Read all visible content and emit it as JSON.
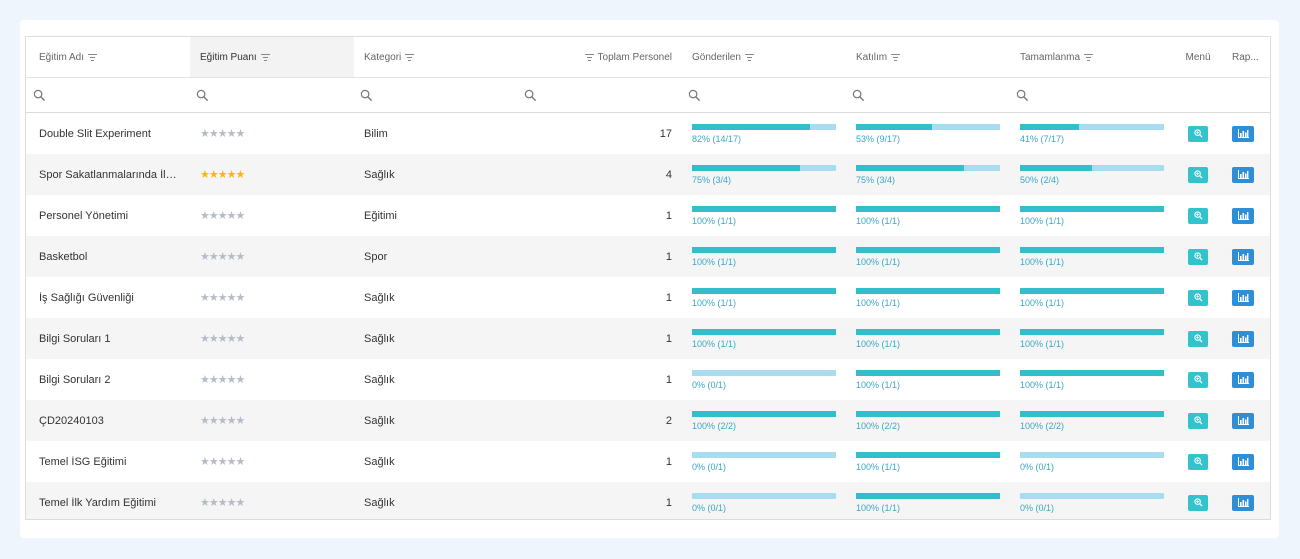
{
  "colors": {
    "accent_fill": "#32bfcb",
    "bar_bg": "#aadcf0",
    "menu_button": "#33c3cc",
    "report_button": "#2f8fd6",
    "star_gold": "#f5b90b",
    "star_grey": "#b5bcc7"
  },
  "icons": {
    "filter": "filter-icon",
    "search": "search-icon",
    "menu_action": "zoom-in-icon",
    "report_action": "bar-chart-icon"
  },
  "columns": {
    "name": "Eğitim Adı",
    "rating": "Eğitim Puanı",
    "category": "Kategori",
    "total": "Toplam Personel",
    "sent": "Gönderilen",
    "attendance": "Katılım",
    "completion": "Tamamlanma",
    "menu": "Menü",
    "report": "Rap..."
  },
  "rows": [
    {
      "name": "Double Slit Experiment",
      "rating": 0,
      "category": "Bilim",
      "total": "17",
      "sent": {
        "pct": 82,
        "label": "82% (14/17)"
      },
      "attendance": {
        "pct": 53,
        "label": "53% (9/17)"
      },
      "completion": {
        "pct": 41,
        "label": "41% (7/17)"
      }
    },
    {
      "name": "Spor Sakatlanmalarında İlk Y...",
      "rating": 5,
      "category": "Sağlık",
      "total": "4",
      "sent": {
        "pct": 75,
        "label": "75% (3/4)"
      },
      "attendance": {
        "pct": 75,
        "label": "75% (3/4)"
      },
      "completion": {
        "pct": 50,
        "label": "50% (2/4)"
      }
    },
    {
      "name": "Personel Yönetimi",
      "rating": 0,
      "category": "Eğitimi",
      "total": "1",
      "sent": {
        "pct": 100,
        "label": "100% (1/1)"
      },
      "attendance": {
        "pct": 100,
        "label": "100% (1/1)"
      },
      "completion": {
        "pct": 100,
        "label": "100% (1/1)"
      }
    },
    {
      "name": "Basketbol",
      "rating": 0,
      "category": "Spor",
      "total": "1",
      "sent": {
        "pct": 100,
        "label": "100% (1/1)"
      },
      "attendance": {
        "pct": 100,
        "label": "100% (1/1)"
      },
      "completion": {
        "pct": 100,
        "label": "100% (1/1)"
      }
    },
    {
      "name": "İş Sağlığı Güvenliği",
      "rating": 0,
      "category": "Sağlık",
      "total": "1",
      "sent": {
        "pct": 100,
        "label": "100% (1/1)"
      },
      "attendance": {
        "pct": 100,
        "label": "100% (1/1)"
      },
      "completion": {
        "pct": 100,
        "label": "100% (1/1)"
      }
    },
    {
      "name": "Bilgi Soruları 1",
      "rating": 0,
      "category": "Sağlık",
      "total": "1",
      "sent": {
        "pct": 100,
        "label": "100% (1/1)"
      },
      "attendance": {
        "pct": 100,
        "label": "100% (1/1)"
      },
      "completion": {
        "pct": 100,
        "label": "100% (1/1)"
      }
    },
    {
      "name": "Bilgi Soruları 2",
      "rating": 0,
      "category": "Sağlık",
      "total": "1",
      "sent": {
        "pct": 0,
        "label": "0% (0/1)"
      },
      "attendance": {
        "pct": 100,
        "label": "100% (1/1)"
      },
      "completion": {
        "pct": 100,
        "label": "100% (1/1)"
      }
    },
    {
      "name": "ÇD20240103",
      "rating": 0,
      "category": "Sağlık",
      "total": "2",
      "sent": {
        "pct": 100,
        "label": "100% (2/2)"
      },
      "attendance": {
        "pct": 100,
        "label": "100% (2/2)"
      },
      "completion": {
        "pct": 100,
        "label": "100% (2/2)"
      }
    },
    {
      "name": "Temel İSG Eğitimi",
      "rating": 0,
      "category": "Sağlık",
      "total": "1",
      "sent": {
        "pct": 0,
        "label": "0% (0/1)"
      },
      "attendance": {
        "pct": 100,
        "label": "100% (1/1)"
      },
      "completion": {
        "pct": 0,
        "label": "0% (0/1)"
      }
    },
    {
      "name": "Temel İlk Yardım Eğitimi",
      "rating": 0,
      "category": "Sağlık",
      "total": "1",
      "sent": {
        "pct": 0,
        "label": "0% (0/1)"
      },
      "attendance": {
        "pct": 100,
        "label": "100% (1/1)"
      },
      "completion": {
        "pct": 0,
        "label": "0% (0/1)"
      }
    }
  ]
}
